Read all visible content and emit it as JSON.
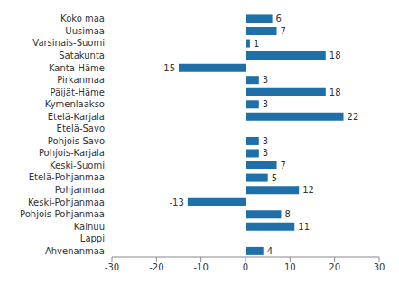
{
  "chart_data": {
    "type": "bar",
    "orientation": "horizontal",
    "categories": [
      "Koko maa",
      "Uusimaa",
      "Varsinais-Suomi",
      "Satakunta",
      "Kanta-Häme",
      "Pirkanmaa",
      "Päijät-Häme",
      "Kymenlaakso",
      "Etelä-Karjala",
      "Etelä-Savo",
      "Pohjois-Savo",
      "Pohjois-Karjala",
      "Keski-Suomi",
      "Etelä-Pohjanmaa",
      "Pohjanmaa",
      "Keski-Pohjanmaa",
      "Pohjois-Pohjanmaa",
      "Kainuu",
      "Lappi",
      "Ahvenanmaa"
    ],
    "values": [
      6,
      7,
      1,
      18,
      -15,
      3,
      18,
      3,
      22,
      0,
      3,
      3,
      7,
      5,
      12,
      -13,
      8,
      11,
      0,
      4
    ],
    "color": "#1f6fa8",
    "xlim": [
      -30,
      30
    ],
    "xticks": [
      -30,
      -20,
      -10,
      0,
      10,
      20,
      30
    ],
    "data_labels": true,
    "grid": false
  }
}
